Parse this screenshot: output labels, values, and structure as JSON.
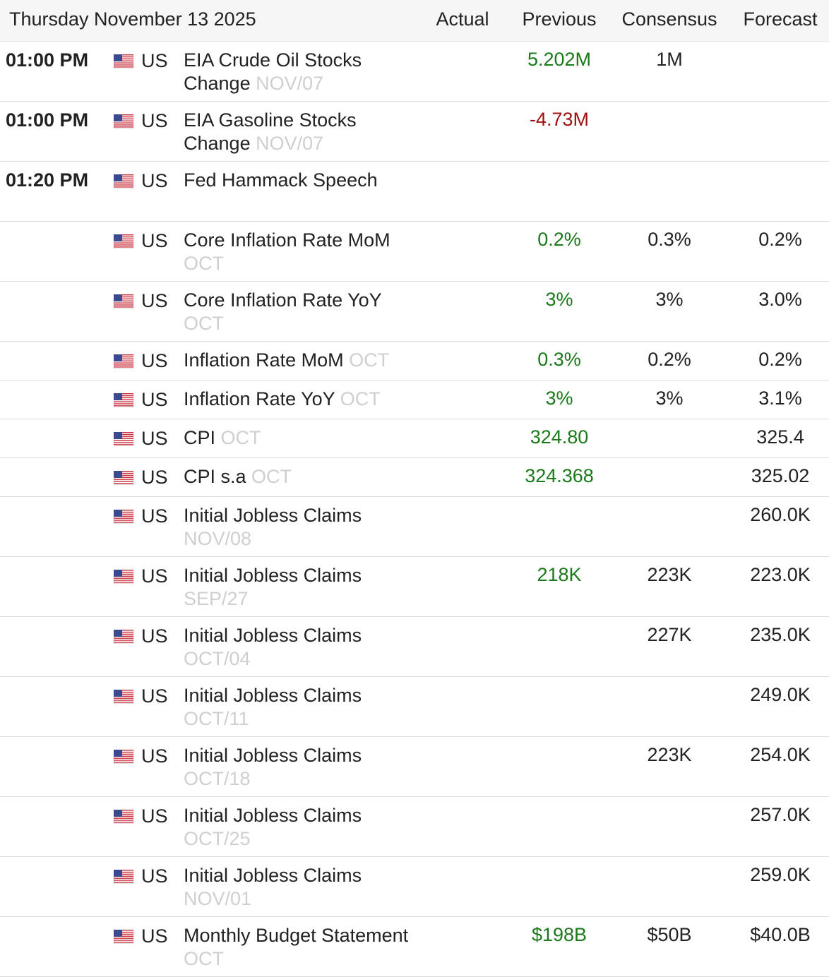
{
  "header": {
    "date": "Thursday November 13 2025",
    "columns": {
      "actual": "Actual",
      "previous": "Previous",
      "consensus": "Consensus",
      "forecast": "Forecast"
    }
  },
  "colors": {
    "positive": "#1a7a1a",
    "negative": "#a01010",
    "reference": "#cfcfcf"
  },
  "icons": {
    "flag": "us-flag-icon"
  },
  "events": [
    {
      "time": "01:00 PM",
      "country": "US",
      "event": "EIA Crude Oil Stocks Change",
      "ref": "NOV/07",
      "actual": "",
      "previous": "5.202M",
      "previous_trend": "pos",
      "consensus": "1M",
      "forecast": ""
    },
    {
      "time": "01:00 PM",
      "country": "US",
      "event": "EIA Gasoline Stocks Change",
      "ref": "NOV/07",
      "actual": "",
      "previous": "-4.73M",
      "previous_trend": "neg",
      "consensus": "",
      "forecast": ""
    },
    {
      "time": "01:20 PM",
      "country": "US",
      "event": "Fed Hammack Speech",
      "ref": "",
      "actual": "",
      "previous": "",
      "previous_trend": "neu",
      "consensus": "",
      "forecast": "",
      "tall": true
    },
    {
      "time": "",
      "country": "US",
      "event": "Core Inflation Rate MoM",
      "ref": "OCT",
      "actual": "",
      "previous": "0.2%",
      "previous_trend": "pos",
      "consensus": "0.3%",
      "forecast": "0.2%"
    },
    {
      "time": "",
      "country": "US",
      "event": "Core Inflation Rate YoY",
      "ref": "OCT",
      "actual": "",
      "previous": "3%",
      "previous_trend": "pos",
      "consensus": "3%",
      "forecast": "3.0%"
    },
    {
      "time": "",
      "country": "US",
      "event": "Inflation Rate MoM",
      "ref": "OCT",
      "actual": "",
      "previous": "0.3%",
      "previous_trend": "pos",
      "consensus": "0.2%",
      "forecast": "0.2%",
      "short": true
    },
    {
      "time": "",
      "country": "US",
      "event": "Inflation Rate YoY",
      "ref": "OCT",
      "actual": "",
      "previous": "3%",
      "previous_trend": "pos",
      "consensus": "3%",
      "forecast": "3.1%",
      "short": true
    },
    {
      "time": "",
      "country": "US",
      "event": "CPI",
      "ref": "OCT",
      "actual": "",
      "previous": "324.80",
      "previous_trend": "pos",
      "consensus": "",
      "forecast": "325.4",
      "short": true
    },
    {
      "time": "",
      "country": "US",
      "event": "CPI s.a",
      "ref": "OCT",
      "actual": "",
      "previous": "324.368",
      "previous_trend": "pos",
      "consensus": "",
      "forecast": "325.02",
      "short": true
    },
    {
      "time": "",
      "country": "US",
      "event": "Initial Jobless Claims",
      "ref": "NOV/08",
      "actual": "",
      "previous": "",
      "previous_trend": "neu",
      "consensus": "",
      "forecast": "260.0K"
    },
    {
      "time": "",
      "country": "US",
      "event": "Initial Jobless Claims",
      "ref": "SEP/27",
      "actual": "",
      "previous": "218K",
      "previous_trend": "pos",
      "consensus": "223K",
      "forecast": "223.0K"
    },
    {
      "time": "",
      "country": "US",
      "event": "Initial Jobless Claims",
      "ref": "OCT/04",
      "actual": "",
      "previous": "",
      "previous_trend": "neu",
      "consensus": "227K",
      "forecast": "235.0K"
    },
    {
      "time": "",
      "country": "US",
      "event": "Initial Jobless Claims",
      "ref": "OCT/11",
      "actual": "",
      "previous": "",
      "previous_trend": "neu",
      "consensus": "",
      "forecast": "249.0K"
    },
    {
      "time": "",
      "country": "US",
      "event": "Initial Jobless Claims",
      "ref": "OCT/18",
      "actual": "",
      "previous": "",
      "previous_trend": "neu",
      "consensus": "223K",
      "forecast": "254.0K"
    },
    {
      "time": "",
      "country": "US",
      "event": "Initial Jobless Claims",
      "ref": "OCT/25",
      "actual": "",
      "previous": "",
      "previous_trend": "neu",
      "consensus": "",
      "forecast": "257.0K"
    },
    {
      "time": "",
      "country": "US",
      "event": "Initial Jobless Claims",
      "ref": "NOV/01",
      "actual": "",
      "previous": "",
      "previous_trend": "neu",
      "consensus": "",
      "forecast": "259.0K"
    },
    {
      "time": "",
      "country": "US",
      "event": "Monthly Budget Statement",
      "ref": "OCT",
      "actual": "",
      "previous": "$198B",
      "previous_trend": "pos",
      "consensus": "$50B",
      "forecast": "$40.0B"
    }
  ]
}
